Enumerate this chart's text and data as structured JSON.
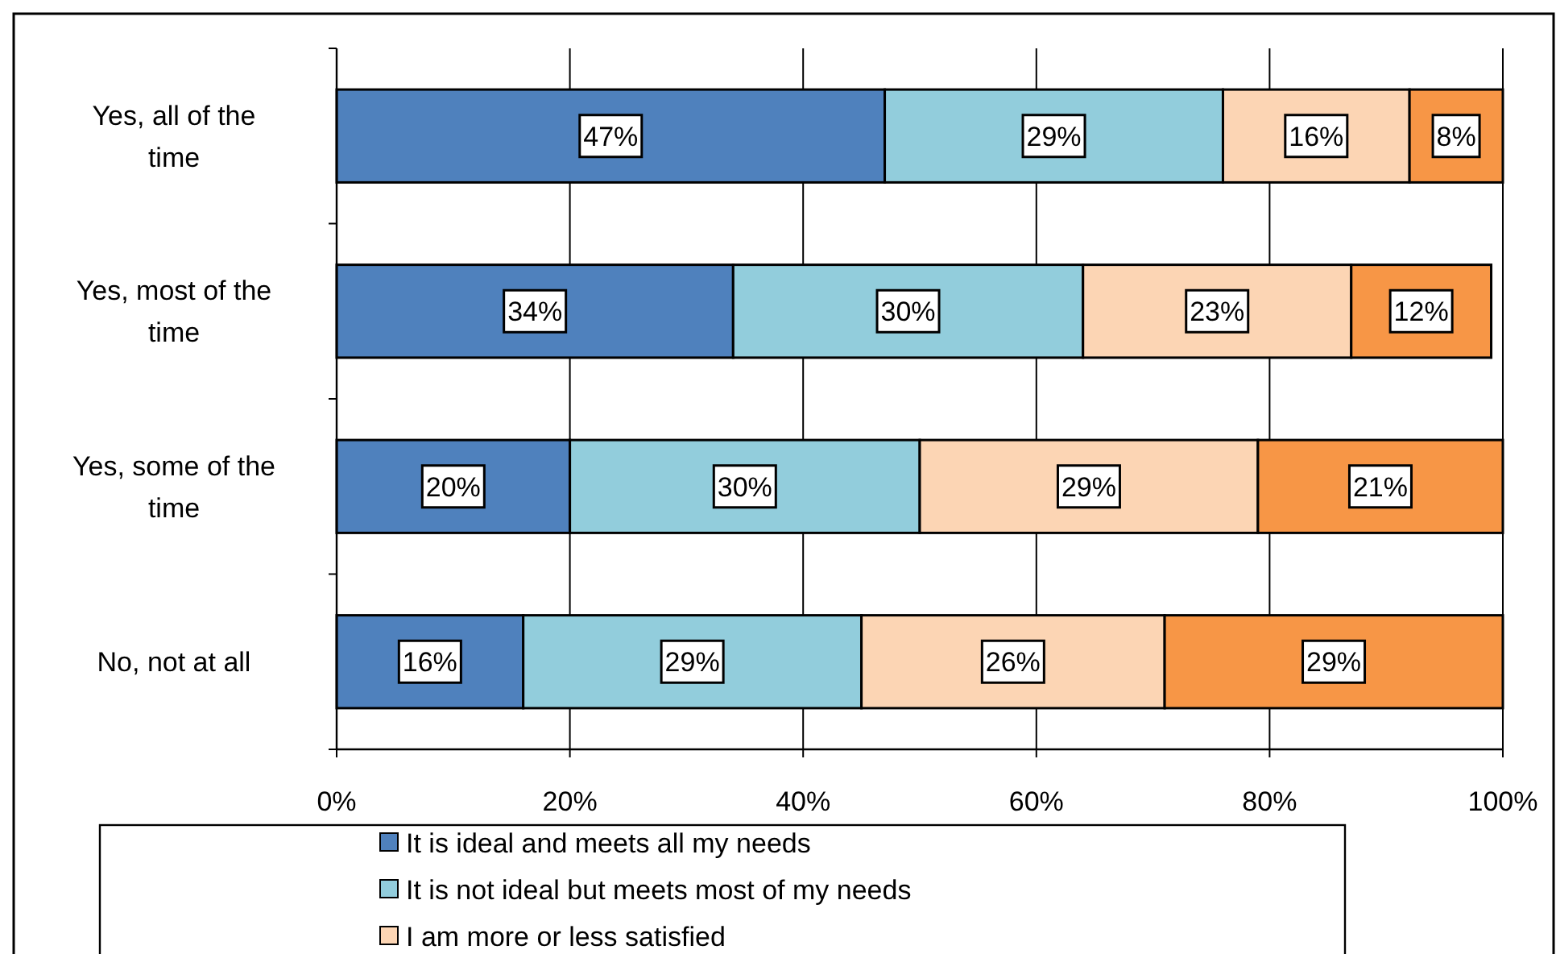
{
  "chart_data": {
    "type": "bar",
    "orientation": "horizontal",
    "stacked": true,
    "categories": [
      "Yes, all of the time",
      "Yes, most of the time",
      "Yes, some of the time",
      "No, not at all"
    ],
    "series": [
      {
        "name": "It is ideal and meets all my needs",
        "color": "#4f81bd",
        "values": [
          47,
          34,
          20,
          16
        ]
      },
      {
        "name": "It is not ideal but meets most of my needs",
        "color": "#92cddc",
        "values": [
          29,
          30,
          30,
          29
        ]
      },
      {
        "name": "I am more or less satisfied",
        "color": "#fcd5b4",
        "values": [
          16,
          23,
          29,
          26
        ]
      },
      {
        "color": "#f79646",
        "values": [
          8,
          12,
          21,
          29
        ]
      }
    ],
    "xlim": [
      0,
      100
    ],
    "xticks": [
      {
        "value": 0,
        "label": "0%"
      },
      {
        "value": 20,
        "label": "20%"
      },
      {
        "value": 40,
        "label": "40%"
      },
      {
        "value": 60,
        "label": "60%"
      },
      {
        "value": 80,
        "label": "80%"
      },
      {
        "value": 100,
        "label": "100%"
      }
    ],
    "grid": "x",
    "legend": "bottom",
    "value_labels": [
      [
        "47%",
        "34%",
        "20%",
        "16%"
      ],
      [
        "29%",
        "30%",
        "30%",
        "29%"
      ],
      [
        "16%",
        "23%",
        "29%",
        "26%"
      ],
      [
        "8%",
        "12%",
        "21%",
        "29%"
      ]
    ]
  }
}
